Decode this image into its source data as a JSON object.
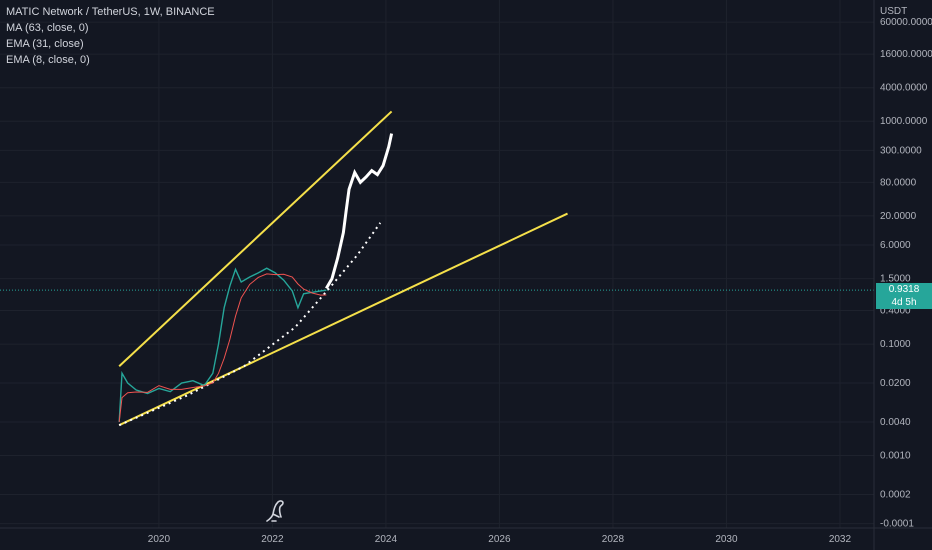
{
  "legend": {
    "title": "MATIC Network / TetherUS, 1W, BINANCE",
    "indicators": [
      "MA (63, close, 0)",
      "EMA (31, close)",
      "EMA (8, close, 0)"
    ]
  },
  "price_axis": {
    "currency": "USDT",
    "ticks": [
      "60000.0000",
      "16000.0000",
      "4000.0000",
      "1000.0000",
      "300.0000",
      "80.0000",
      "20.0000",
      "6.0000",
      "1.5000",
      "0.4000",
      "0.1000",
      "0.0200",
      "0.0040",
      "0.0010",
      "0.0002",
      "-0.0001"
    ]
  },
  "time_axis": {
    "ticks": [
      "2020",
      "2022",
      "2024",
      "2026",
      "2028",
      "2030",
      "2032"
    ]
  },
  "last_price": {
    "value": "0.9318",
    "countdown": "4d 5h"
  },
  "colors": {
    "background": "#131722",
    "up": "#26a69a",
    "down": "#ef5350",
    "trendline": "#f5e04a",
    "projection": "#ffffff",
    "ma": "#b2b5be",
    "ema_fast": "#ef5350"
  },
  "chart_data": {
    "type": "line",
    "title": "MATIC Network / TetherUS, 1W, BINANCE",
    "xlabel": "",
    "ylabel": "USDT",
    "y_scale": "log",
    "xlim": [
      2017.2,
      2032.6
    ],
    "ylim": [
      5e-05,
      150000
    ],
    "series": [
      {
        "name": "MATIC Network / TetherUS",
        "x": [
          2019.3,
          2019.35,
          2019.45,
          2019.6,
          2019.8,
          2020.0,
          2020.2,
          2020.4,
          2020.6,
          2020.8,
          2020.95,
          2021.05,
          2021.15,
          2021.25,
          2021.35,
          2021.45,
          2021.6,
          2021.75,
          2021.9,
          2022.05,
          2022.2,
          2022.35,
          2022.45,
          2022.55,
          2022.7,
          2022.85,
          2022.95
        ],
        "y": [
          0.004,
          0.03,
          0.02,
          0.015,
          0.013,
          0.016,
          0.014,
          0.02,
          0.022,
          0.018,
          0.03,
          0.1,
          0.45,
          1.1,
          2.2,
          1.3,
          1.6,
          1.9,
          2.3,
          1.9,
          1.4,
          0.9,
          0.45,
          0.8,
          0.85,
          0.9,
          0.93
        ]
      },
      {
        "name": "Projection",
        "x": [
          2022.95,
          2023.05,
          2023.15,
          2023.25,
          2023.3,
          2023.35,
          2023.45,
          2023.55,
          2023.65,
          2023.75,
          2023.85,
          2023.95,
          2024.05,
          2024.1
        ],
        "y": [
          1.0,
          1.5,
          3.5,
          10,
          25,
          60,
          120,
          80,
          100,
          130,
          110,
          160,
          350,
          600
        ]
      }
    ],
    "trendlines": [
      {
        "x": [
          2019.3,
          2024.1
        ],
        "y": [
          0.04,
          1500
        ]
      },
      {
        "x": [
          2019.3,
          2027.2
        ],
        "y": [
          0.0035,
          22
        ]
      }
    ],
    "projection_dotted": {
      "x": [
        2019.3,
        2020.5,
        2021.5,
        2022.4,
        2023.0,
        2023.5,
        2023.9
      ],
      "y": [
        0.0035,
        0.012,
        0.04,
        0.2,
        1.0,
        4.0,
        15.0
      ]
    }
  }
}
